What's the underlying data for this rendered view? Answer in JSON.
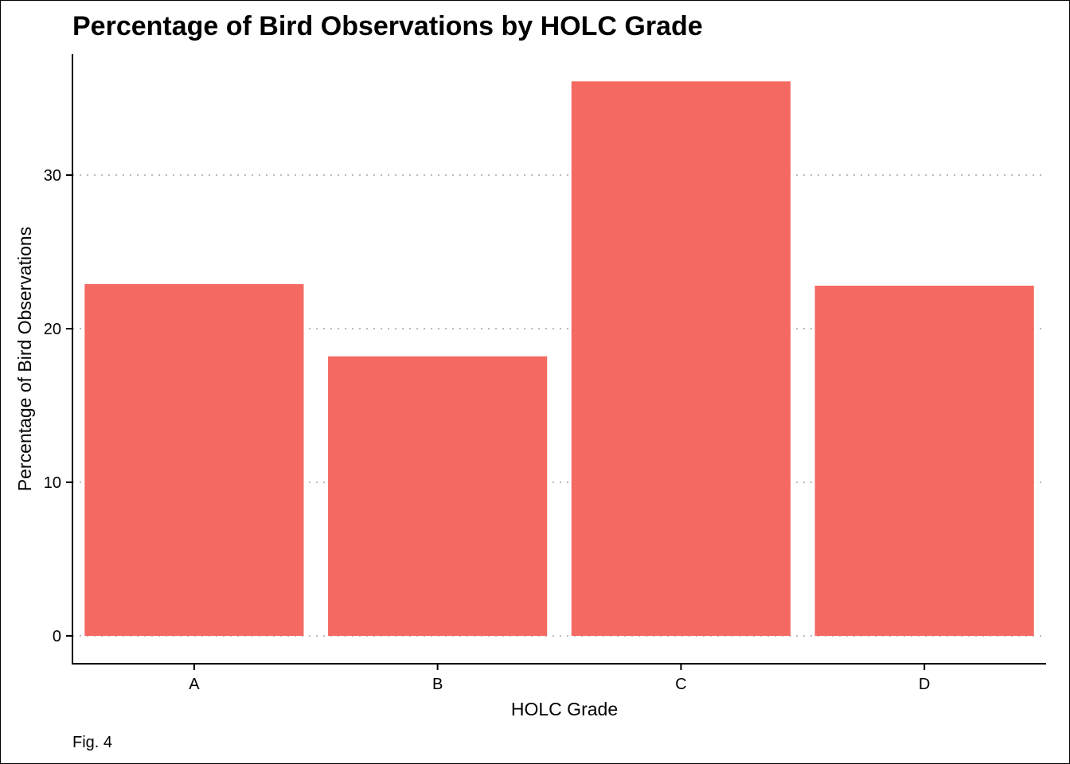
{
  "chart_data": {
    "type": "bar",
    "title": "Percentage of Bird Observations by HOLC Grade",
    "xlabel": "HOLC Grade",
    "ylabel": "Percentage of Bird Observations",
    "categories": [
      "A",
      "B",
      "C",
      "D"
    ],
    "values": [
      22.9,
      18.2,
      36.1,
      22.8
    ],
    "ylim": [
      0,
      37.4
    ],
    "yticks": [
      0,
      10,
      20,
      30
    ],
    "grid": "horizontal dotted major lines",
    "bar_color": "#F46A62",
    "grid_color": "#BBBBBB",
    "caption": "Fig. 4"
  }
}
